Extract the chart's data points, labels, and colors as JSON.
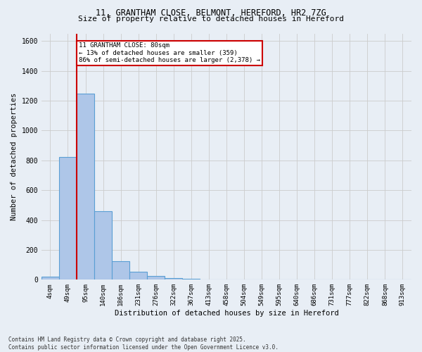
{
  "title_line1": "11, GRANTHAM CLOSE, BELMONT, HEREFORD, HR2 7ZG",
  "title_line2": "Size of property relative to detached houses in Hereford",
  "xlabel": "Distribution of detached houses by size in Hereford",
  "ylabel": "Number of detached properties",
  "categories": [
    "4sqm",
    "49sqm",
    "95sqm",
    "140sqm",
    "186sqm",
    "231sqm",
    "276sqm",
    "322sqm",
    "367sqm",
    "413sqm",
    "458sqm",
    "504sqm",
    "549sqm",
    "595sqm",
    "640sqm",
    "686sqm",
    "731sqm",
    "777sqm",
    "822sqm",
    "868sqm",
    "913sqm"
  ],
  "bar_values": [
    22,
    820,
    1245,
    460,
    125,
    55,
    25,
    12,
    5,
    0,
    0,
    0,
    0,
    0,
    0,
    0,
    0,
    0,
    0,
    0,
    0
  ],
  "bar_color": "#aec6e8",
  "bar_edge_color": "#5a9fd4",
  "annotation_title": "11 GRANTHAM CLOSE: 80sqm",
  "annotation_line2": "← 13% of detached houses are smaller (359)",
  "annotation_line3": "86% of semi-detached houses are larger (2,378) →",
  "annotation_box_color": "#ffffff",
  "annotation_box_edge": "#cc0000",
  "subject_line_color": "#cc0000",
  "ylim": [
    0,
    1650
  ],
  "yticks": [
    0,
    200,
    400,
    600,
    800,
    1000,
    1200,
    1400,
    1600
  ],
  "grid_color": "#cccccc",
  "bg_color": "#e8eef5",
  "footer_line1": "Contains HM Land Registry data © Crown copyright and database right 2025.",
  "footer_line2": "Contains public sector information licensed under the Open Government Licence v3.0."
}
